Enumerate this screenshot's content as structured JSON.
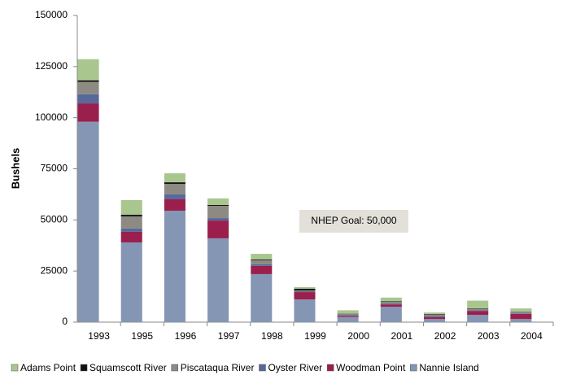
{
  "chart_data": {
    "type": "stacked_bar",
    "y_label": "Bushels",
    "annotation": "NHEP Goal: 50,000",
    "categories": [
      "1993",
      "1995",
      "1996",
      "1997",
      "1998",
      "1999",
      "2000",
      "2001",
      "2002",
      "2003",
      "2004"
    ],
    "series": [
      {
        "name": "Nannie Island",
        "color": "#8496b4",
        "values": [
          98000,
          39000,
          54500,
          41000,
          23500,
          11100,
          2500,
          7500,
          1500,
          3500,
          1500
        ]
      },
      {
        "name": "Woodman Point",
        "color": "#9b1f4d",
        "values": [
          9000,
          5200,
          5600,
          8700,
          4000,
          3600,
          600,
          1200,
          1000,
          2000,
          2500
        ]
      },
      {
        "name": "Oyster River",
        "color": "#56699a",
        "values": [
          4500,
          1600,
          2400,
          1200,
          800,
          400,
          300,
          400,
          500,
          300,
          300
        ]
      },
      {
        "name": "Piscataqua River",
        "color": "#8c8a82",
        "values": [
          6000,
          5900,
          5100,
          6000,
          1900,
          400,
          700,
          800,
          800,
          800,
          800
        ]
      },
      {
        "name": "Squamscott River",
        "color": "#111111",
        "values": [
          800,
          800,
          800,
          400,
          400,
          800,
          100,
          300,
          200,
          200,
          100
        ]
      },
      {
        "name": "Adams Point",
        "color": "#a9c68f",
        "values": [
          10300,
          7200,
          4400,
          3200,
          2800,
          800,
          1600,
          1800,
          700,
          3700,
          1500
        ]
      }
    ],
    "ylim": [
      0,
      150000
    ],
    "yticks": [
      0,
      25000,
      50000,
      75000,
      100000,
      125000,
      150000
    ]
  }
}
